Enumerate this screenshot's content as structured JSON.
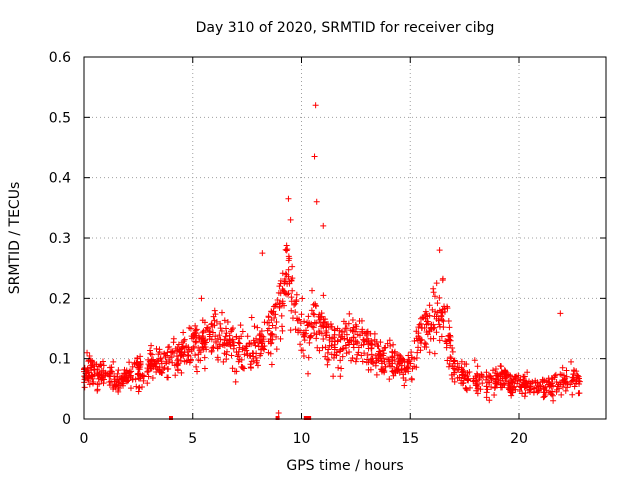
{
  "chart_data": {
    "type": "scatter",
    "title": "Day 310 of 2020, SRMTID for receiver cibg",
    "xlabel": "GPS time / hours",
    "ylabel": "SRMTID / TECUs",
    "xlim": [
      0,
      24
    ],
    "ylim": [
      0,
      0.6
    ],
    "xticks": [
      0,
      5,
      10,
      15,
      20
    ],
    "yticks": [
      0,
      0.1,
      0.2,
      0.3,
      0.4,
      0.5,
      0.6
    ],
    "xtick_labels": [
      "0",
      "5",
      "10",
      "15",
      "20"
    ],
    "ytick_labels": [
      "0",
      "0.1",
      "0.2",
      "0.3",
      "0.4",
      "0.5",
      "0.6"
    ],
    "grid": true,
    "marker": "+",
    "series_color": "#ff0000",
    "data_range_hours": [
      0,
      22.8
    ],
    "trend": {
      "x": [
        0,
        0.5,
        1,
        1.5,
        2,
        2.5,
        3,
        3.5,
        4,
        4.5,
        5,
        5.5,
        6,
        6.5,
        7,
        7.5,
        8,
        8.5,
        9,
        9.3,
        9.6,
        9.9,
        10.2,
        10.5,
        10.8,
        11.2,
        11.6,
        12,
        12.5,
        13,
        13.5,
        14,
        14.5,
        15,
        15.5,
        16,
        16.5,
        17,
        17.5,
        18,
        18.5,
        19,
        19.5,
        20,
        20.5,
        21,
        21.5,
        22,
        22.5,
        22.8
      ],
      "y": [
        0.08,
        0.075,
        0.07,
        0.065,
        0.07,
        0.08,
        0.085,
        0.09,
        0.1,
        0.11,
        0.12,
        0.13,
        0.14,
        0.12,
        0.11,
        0.115,
        0.12,
        0.15,
        0.18,
        0.25,
        0.2,
        0.15,
        0.14,
        0.16,
        0.17,
        0.13,
        0.12,
        0.13,
        0.14,
        0.12,
        0.1,
        0.1,
        0.09,
        0.085,
        0.14,
        0.16,
        0.18,
        0.09,
        0.07,
        0.065,
        0.06,
        0.07,
        0.065,
        0.06,
        0.055,
        0.05,
        0.055,
        0.06,
        0.07,
        0.06
      ]
    },
    "outliers": [
      {
        "x": 10.65,
        "y": 0.52
      },
      {
        "x": 10.6,
        "y": 0.435
      },
      {
        "x": 10.7,
        "y": 0.36
      },
      {
        "x": 9.4,
        "y": 0.365
      },
      {
        "x": 9.5,
        "y": 0.33
      },
      {
        "x": 11.0,
        "y": 0.32
      },
      {
        "x": 16.35,
        "y": 0.28
      },
      {
        "x": 8.2,
        "y": 0.275
      },
      {
        "x": 5.4,
        "y": 0.2
      },
      {
        "x": 21.9,
        "y": 0.175
      },
      {
        "x": 8.95,
        "y": 0.01
      },
      {
        "x": 10.3,
        "y": 0.075
      }
    ],
    "zero_points_x": [
      4.0,
      8.9,
      10.2,
      10.35
    ]
  }
}
